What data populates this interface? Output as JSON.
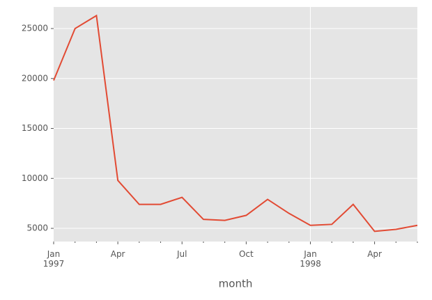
{
  "chart_data": {
    "type": "line",
    "x_label": "month",
    "categories": [
      "Jan\n1997",
      null,
      null,
      "Apr",
      null,
      null,
      "Jul",
      null,
      null,
      "Oct",
      null,
      null,
      "Jan\n1998",
      null,
      null,
      "Apr",
      null,
      null
    ],
    "series": [
      {
        "color": "#e24a33",
        "values": [
          19800,
          25000,
          26300,
          9800,
          7400,
          7400,
          8100,
          5900,
          5800,
          6300,
          7900,
          6500,
          5300,
          5400,
          7400,
          4700,
          4900,
          5300
        ]
      }
    ],
    "ylim": [
      3680,
      27160
    ],
    "yticks": [
      5000,
      10000,
      15000,
      20000,
      25000
    ],
    "grid": true
  }
}
